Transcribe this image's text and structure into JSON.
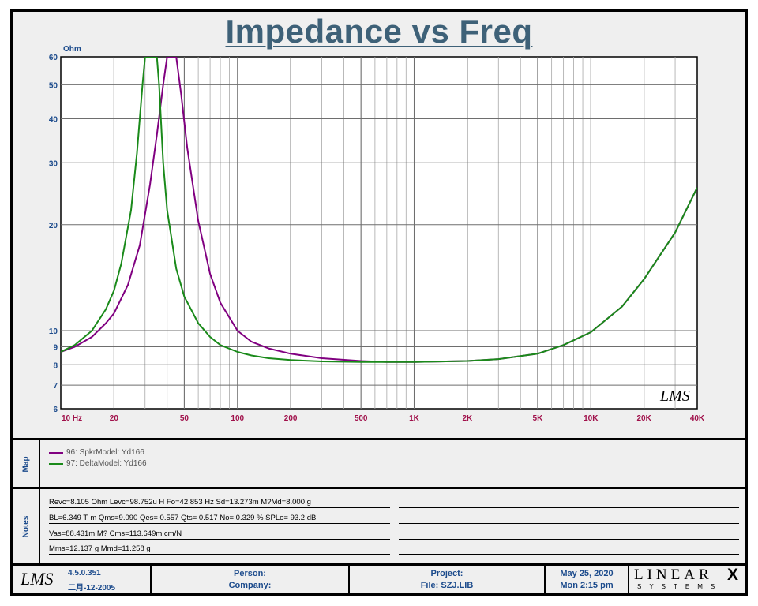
{
  "title": "Impedance vs Freq",
  "chart_data": {
    "type": "line",
    "title": "Impedance vs Freq",
    "ylabel": "Ohm",
    "xlabel": "",
    "x_scale": "log",
    "y_scale": "log",
    "xlim": [
      10,
      40000
    ],
    "ylim": [
      6,
      60
    ],
    "x_ticks": [
      10,
      20,
      50,
      100,
      200,
      500,
      1000,
      2000,
      5000,
      10000,
      20000,
      40000
    ],
    "x_tick_labels": [
      "10  Hz",
      "20",
      "50",
      "100",
      "200",
      "500",
      "1K",
      "2K",
      "5K",
      "10K",
      "20K",
      "40K"
    ],
    "y_ticks": [
      6,
      7,
      8,
      9,
      10,
      20,
      30,
      40,
      50,
      60
    ],
    "y_tick_labels": [
      "6",
      "7",
      "8",
      "9",
      "10",
      "20",
      "30",
      "40",
      "50",
      "60"
    ],
    "grid": true,
    "series": [
      {
        "name": "96: SpkrModel: Yd166",
        "color": "#800080",
        "x": [
          10,
          12,
          15,
          18,
          20,
          24,
          28,
          32,
          35,
          38,
          40,
          42,
          45,
          48,
          52,
          60,
          70,
          80,
          100,
          120,
          150,
          200,
          300,
          500,
          700,
          1000,
          2000,
          3000,
          5000,
          7000,
          10000,
          15000,
          20000,
          30000,
          40000
        ],
        "values": [
          8.7,
          9.0,
          9.6,
          10.5,
          11.2,
          13.5,
          17.5,
          26.0,
          36.0,
          50.0,
          60.0,
          60.0,
          60.0,
          47.0,
          33.0,
          20.5,
          14.5,
          12.0,
          10.0,
          9.3,
          8.9,
          8.6,
          8.35,
          8.2,
          8.15,
          8.15,
          8.2,
          8.3,
          8.6,
          9.1,
          9.9,
          11.7,
          14.0,
          19.0,
          25.5
        ]
      },
      {
        "name": "97: DeltaModel: Yd166",
        "color": "#1a8a1a",
        "x": [
          10,
          12,
          15,
          18,
          20,
          22,
          25,
          27,
          29,
          30,
          33,
          35,
          36,
          38,
          40,
          45,
          50,
          60,
          70,
          80,
          100,
          120,
          150,
          200,
          300,
          500,
          700,
          1000,
          2000,
          3000,
          5000,
          7000,
          10000,
          15000,
          20000,
          30000,
          40000
        ],
        "values": [
          8.7,
          9.1,
          10.0,
          11.5,
          13.0,
          15.5,
          22.0,
          32.0,
          50.0,
          60.0,
          60.0,
          60.0,
          50.0,
          30.0,
          22.0,
          15.0,
          12.5,
          10.5,
          9.6,
          9.1,
          8.7,
          8.5,
          8.35,
          8.25,
          8.18,
          8.15,
          8.15,
          8.15,
          8.2,
          8.3,
          8.6,
          9.1,
          9.9,
          11.7,
          14.0,
          19.0,
          25.5
        ]
      }
    ],
    "annotation": "LMS"
  },
  "map": {
    "label": "Map",
    "items": [
      {
        "text": "96: SpkrModel: Yd166",
        "color": "#800080"
      },
      {
        "text": "97: DeltaModel: Yd166",
        "color": "#1a8a1a"
      }
    ]
  },
  "notes": {
    "label": "Notes",
    "lines": [
      "Revc=8.105 Ohm  Levc=98.752u H  Fo=42.853 Hz  Sd=13.273m M?Md=8.000 g",
      "BL=6.349 T·m  Qms=9.090  Qes= 0.557  Qts= 0.517  No= 0.329 %  SPLo= 93.2 dB",
      "Vas=88.431m M? Cms=113.649m cm/N",
      "Mms=12.137 g  Mmd=11.258 g"
    ]
  },
  "footer": {
    "logo": "LMS",
    "version": "4.5.0.351",
    "build_date": "二月-12-2005",
    "person_label": "Person:",
    "company_label": "Company:",
    "project_label": "Project:",
    "file_label": "File: SZJ.LIB",
    "date": "May 25, 2020",
    "time": "Mon  2:15 pm",
    "brand_top": "LINEAR",
    "brand_x": "X",
    "brand_bottom": "SYSTEMS"
  }
}
